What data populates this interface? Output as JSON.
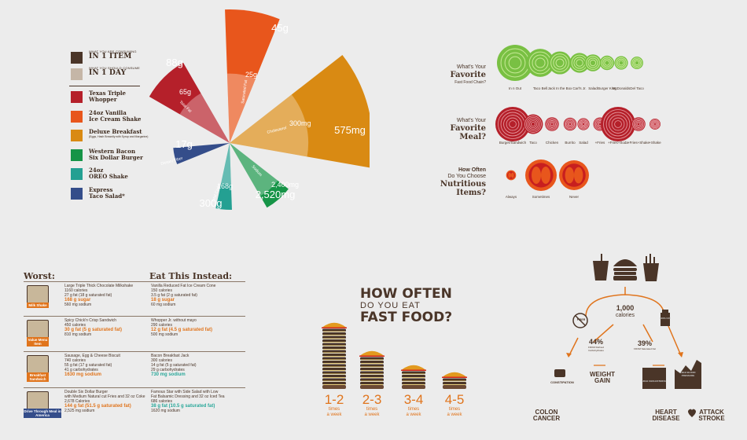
{
  "colors": {
    "dark": "#4a3528",
    "orange": "#e0741c",
    "red": "#b5202a",
    "tangerine": "#e8561c",
    "mustard": "#d98a13",
    "green": "#169447",
    "teal": "#24a092",
    "navy": "#344d8a",
    "tan": "#c5b6a7",
    "lime": "#79c043"
  },
  "legend": {
    "consuming": {
      "small": "WHAT YOU ARE CONSUMING",
      "big": "IN 1 ITEM"
    },
    "should": {
      "small": "WHAT YOU SHOULD CONSUME",
      "big": "IN 1 DAY"
    },
    "items": [
      {
        "line1": "Texas Triple",
        "line2": "Whopper",
        "sub": "",
        "icon": "burger-icon"
      },
      {
        "line1": "24oz Vanilla",
        "line2": "Ice Cream Shake",
        "sub": "",
        "icon": "shake-icon"
      },
      {
        "line1": "Deluxe Breakfast",
        "line2": "",
        "sub": "(Eggs, Hash Brownlly with Syrup and Margarine)",
        "icon": "breakfast-icon"
      },
      {
        "line1": "Western Bacon",
        "line2": "Six Dollar Burger",
        "sub": "",
        "icon": "burger-icon"
      },
      {
        "line1": "24oz",
        "line2": "OREO Shake",
        "sub": "",
        "icon": "shake-icon"
      },
      {
        "line1": "Express",
        "line2": "Taco Salad*",
        "sub": "",
        "icon": "salad-icon"
      }
    ]
  },
  "chart_data": [
    {
      "type": "radial",
      "title": "",
      "series": [
        {
          "item": "Texas Triple Whopper",
          "nutrient": "Total Fat",
          "consumed_label": "88g",
          "consumed": 88,
          "daily_label": "65g",
          "daily": 65,
          "color": "#b5202a"
        },
        {
          "item": "24oz Vanilla Ice Cream Shake",
          "nutrient": "Saturated Fat",
          "consumed_label": "45g",
          "consumed": 45,
          "daily_label": "25g",
          "daily": 25,
          "color": "#e8561c"
        },
        {
          "item": "Deluxe Breakfast",
          "nutrient": "Cholesterol",
          "consumed_label": "575mg",
          "consumed": 575,
          "daily_label": "300mg",
          "daily": 300,
          "color": "#d98a13"
        },
        {
          "item": "Western Bacon Six Dollar Burger",
          "nutrient": "Sodium",
          "consumed_label": "2,520mg",
          "consumed": 2520,
          "daily_label": "2,400mg",
          "daily": 2400,
          "color": "#169447"
        },
        {
          "item": "24oz OREO Shake",
          "nutrient": "Total Carbs",
          "consumed_label": "300g",
          "consumed": 300,
          "daily_label": "168g",
          "daily": 168,
          "color": "#24a092"
        },
        {
          "item": "Express Taco Salad",
          "nutrient": "Dietary Fiber",
          "consumed_label": "17g",
          "consumed": 17,
          "daily_label": "",
          "daily": null,
          "color": "#344d8a"
        }
      ]
    },
    {
      "type": "bubble",
      "title": "What's Your Favorite Fast Food Chain?",
      "categories": [
        "In n Out",
        "Taco Bell",
        "Jack In the Box",
        "Carl's Jr.",
        "Salad",
        "Burger King",
        "McDonalds",
        "Del Taco"
      ],
      "values": [
        100,
        60,
        40,
        30,
        22,
        16,
        14,
        12
      ],
      "color": "#79c043"
    },
    {
      "type": "bubble",
      "title": "What's Your Favorite Meal?",
      "categories": [
        "Burger/Sandwich",
        "Taco",
        "Chicken",
        "Burrito",
        "Salad",
        "+Fries",
        "+Fries+Soda",
        "+Fries+Shake",
        "+Shake"
      ],
      "values": [
        100,
        32,
        16,
        14,
        12,
        15,
        100,
        16,
        10
      ],
      "color": "#b5202a"
    },
    {
      "type": "bubble",
      "title": "How Often Do You Choose Nutritious Items?",
      "categories": [
        "Always",
        "Sometimes",
        "Never"
      ],
      "values": [
        10,
        100,
        90
      ],
      "color": "#e8561c"
    },
    {
      "type": "bar",
      "title": "HOW OFTEN DO YOU EAT FAST FOOD?",
      "categories": [
        "1-2",
        "2-3",
        "3-4",
        "4-5"
      ],
      "values": [
        16,
        8,
        4,
        2
      ],
      "unit": "times a week"
    }
  ],
  "q1": {
    "s": "What's Your",
    "b1": "Favorite",
    "s2": "Fast Food Chain?"
  },
  "q2": {
    "s": "What's Your",
    "b1": "Favorite",
    "b2": "Meal?"
  },
  "q3": {
    "s1": "How Often",
    "s2": "Do You Choose",
    "b1": "Nutritious",
    "b2": "Items?"
  },
  "worst": {
    "heading": "Worst:",
    "instead": "Eat This Instead:",
    "rows": [
      {
        "tag": "Milk Shake",
        "worst": [
          "Large Triple Thick Chocolate Milkshake",
          "1160 calories",
          "27 g fat (18 g saturated fat)"
        ],
        "worst_hl": "168 g sugar",
        "worst_after": "560 mg sodium",
        "best": [
          "Vanilla Reduced Fat Ice Cream Cone",
          "150 calories",
          "3.5 g fat (2 g saturated fat)"
        ],
        "best_hl": "18 g sugar",
        "best_after": "60 mg sodium"
      },
      {
        "tag": "Value Menu Item",
        "worst": [
          "Spicy Chick'n Crisp Sandwich",
          "450 calories"
        ],
        "worst_hl": "30 g fat (5 g saturated fat)",
        "worst_after": "810 mg sodium",
        "best": [
          "Whopper Jr. without mayo",
          "290 calories"
        ],
        "best_hl": "12 g fat (4.5 g saturated fat)",
        "best_after": "500 mg sodium"
      },
      {
        "tag": "Breakfast Sandwich",
        "worst": [
          "Sausage, Egg & Cheese Biscuit",
          "740 calories",
          "55 g fat (17 g saturated fat)",
          "41 g carbohydrates"
        ],
        "worst_hl": "1630 mg sodium",
        "worst_after": "",
        "best": [
          "Bacon Breakfast Jack",
          "300 calories",
          "14 g fat (5 g saturated fat)",
          "29 g carbohydrates"
        ],
        "best_hl": "730 mg sodium",
        "best_after": ""
      },
      {
        "tag": "Drive Through Meal in America",
        "worst": [
          "Double Six Dollar Burger",
          "with Medium Natural cut Fries and 32 oz Coke",
          "2,678 Calories"
        ],
        "worst_hl": "144 g fat (51.5 g saturated fat)",
        "worst_after": "2,525 mg sodium",
        "best": [
          "Famous Star with Side Salad with Low",
          "Fat Balsamic Dressing and 32 oz Iced Tea",
          "686 calories"
        ],
        "best_hl": "38 g fat (10.5 g saturated fat)",
        "best_after": "1620 mg sodium"
      }
    ]
  },
  "freq": {
    "line1": "HOW OFTEN",
    "line2": "DO YOU EAT",
    "line3": "FAST FOOD?",
    "times": "times",
    "week": "a week"
  },
  "health": {
    "calories_n": "1,000",
    "calories": "calories",
    "fiber": "FIBER",
    "pct1": "44%",
    "pct1_lbl": "FROM Refined Carbohydrates",
    "pct2": "39%",
    "pct2_lbl": "FROM Saturated Fat",
    "constipation": "CONSTIPATION",
    "weight1": "WEIGHT",
    "weight2": "GAIN",
    "cholesterol": "HIGH CHOLESTEROL",
    "bp": "HIGH BLOOD PRESSURE",
    "colon1": "COLON",
    "colon2": "CANCER",
    "heart1": "HEART",
    "heart2": "DISEASE",
    "attack": "ATTACK",
    "stroke": "STROKE",
    "fat": "100% FAT"
  }
}
